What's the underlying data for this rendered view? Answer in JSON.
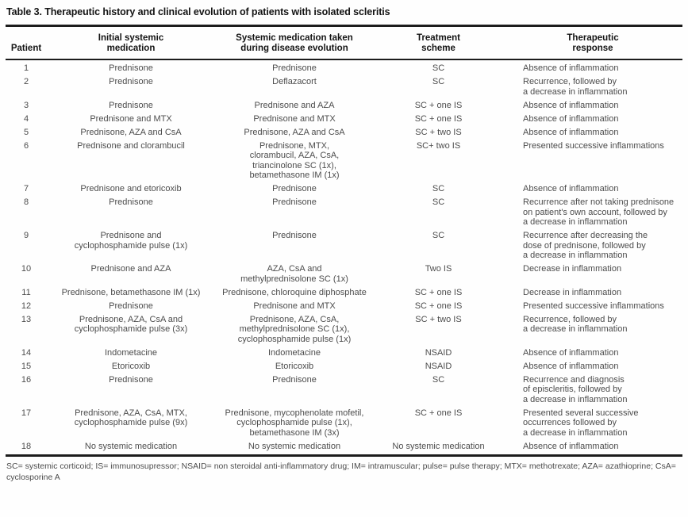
{
  "colors": {
    "background": "#fefefe",
    "heading_text": "#141414",
    "body_text": "#4c4c4c",
    "rule": "#1c1c1c"
  },
  "table": {
    "title": "Table 3. Therapeutic history and clinical evolution of patients with isolated scleritis",
    "columns": [
      "Patient",
      "Initial systemic\nmedication",
      "Systemic medication taken\nduring disease evolution",
      "Treatment\nscheme",
      "Therapeutic\nresponse"
    ],
    "rows": [
      {
        "patient": "1",
        "initial": "Prednisone",
        "evolution": "Prednisone",
        "scheme": "SC",
        "response": "Absence of inflammation"
      },
      {
        "patient": "2",
        "initial": "Prednisone",
        "evolution": "Deflazacort",
        "scheme": "SC",
        "response": "Recurrence, followed by\na decrease in inflammation"
      },
      {
        "patient": "3",
        "initial": "Prednisone",
        "evolution": "Prednisone and AZA",
        "scheme": "SC + one IS",
        "response": "Absence of inflammation"
      },
      {
        "patient": "4",
        "initial": "Prednisone and MTX",
        "evolution": "Prednisone and MTX",
        "scheme": "SC + one IS",
        "response": "Absence of inflammation"
      },
      {
        "patient": "5",
        "initial": "Prednisone, AZA and CsA",
        "evolution": "Prednisone, AZA and CsA",
        "scheme": "SC + two IS",
        "response": "Absence of inflammation"
      },
      {
        "patient": "6",
        "initial": "Prednisone and clorambucil",
        "evolution": "Prednisone, MTX,\nclorambucil, AZA, CsA,\ntriancinolone SC (1x),\nbetamethasone IM (1x)",
        "scheme": "SC+ two IS",
        "response": "Presented successive inflammations"
      },
      {
        "patient": "7",
        "initial": "Prednisone and etoricoxib",
        "evolution": "Prednisone",
        "scheme": "SC",
        "response": "Absence of inflammation"
      },
      {
        "patient": "8",
        "initial": "Prednisone",
        "evolution": "Prednisone",
        "scheme": "SC",
        "response": "Recurrence after not taking prednisone\non patient's own account, followed by\na decrease in inflammation"
      },
      {
        "patient": "9",
        "initial": "Prednisone and\ncyclophosphamide pulse (1x)",
        "evolution": "Prednisone",
        "scheme": "SC",
        "response": "Recurrence after decreasing the\ndose of prednisone, followed by\na decrease in inflammation"
      },
      {
        "patient": "10",
        "initial": "Prednisone and AZA",
        "evolution": "AZA, CsA and\nmethylprednisolone SC (1x)",
        "scheme": "Two IS",
        "response": "Decrease in inflammation"
      },
      {
        "patient": "11",
        "initial": "Prednisone, betamethasone IM (1x)",
        "evolution": "Prednisone, chloroquine diphosphate",
        "scheme": "SC + one IS",
        "response": "Decrease in inflammation"
      },
      {
        "patient": "12",
        "initial": "Prednisone",
        "evolution": "Prednisone and MTX",
        "scheme": "SC + one IS",
        "response": "Presented successive inflammations"
      },
      {
        "patient": "13",
        "initial": "Prednisone, AZA, CsA and\ncyclophosphamide pulse (3x)",
        "evolution": "Prednisone, AZA, CsA,\nmethylprednisolone SC (1x),\ncyclophosphamide pulse (1x)",
        "scheme": "SC + two IS",
        "response": "Recurrence, followed by\na decrease in inflammation"
      },
      {
        "patient": "14",
        "initial": "Indometacine",
        "evolution": "Indometacine",
        "scheme": "NSAID",
        "response": "Absence of inflammation"
      },
      {
        "patient": "15",
        "initial": "Etoricoxib",
        "evolution": "Etoricoxib",
        "scheme": "NSAID",
        "response": "Absence of inflammation"
      },
      {
        "patient": "16",
        "initial": "Prednisone",
        "evolution": "Prednisone",
        "scheme": "SC",
        "response": "Recurrence and diagnosis\nof episcleritis, followed by\na decrease in inflammation"
      },
      {
        "patient": "17",
        "initial": "Prednisone, AZA, CsA, MTX,\ncyclophosphamide pulse (9x)",
        "evolution": "Prednisone, mycophenolate mofetil,\ncyclophosphamide pulse (1x),\nbetamethasone IM (3x)",
        "scheme": "SC + one IS",
        "response": "Presented several successive\noccurrences followed by\na decrease in inflammation"
      },
      {
        "patient": "18",
        "initial": "No systemic medication",
        "evolution": "No systemic medication",
        "scheme": "No systemic medication",
        "response": "Absence of inflammation"
      }
    ],
    "footnote": "SC= systemic corticoid; IS= immunosupressor; NSAID= non steroidal anti-inflammatory drug; IM= intramuscular; pulse= pulse therapy; MTX= methotrexate; AZA= azathioprine; CsA= cyclosporine A"
  }
}
